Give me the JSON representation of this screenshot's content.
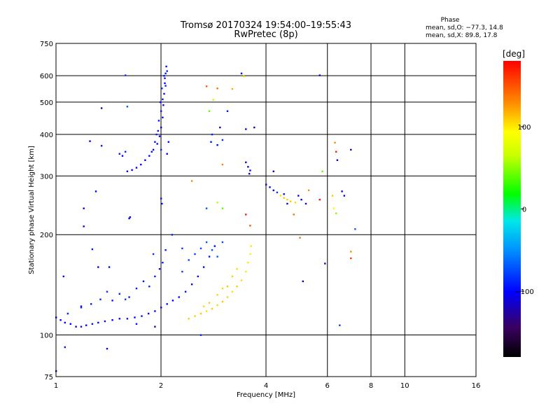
{
  "chart_data": {
    "type": "scatter",
    "title": "Tromsø 20170324 19:54:00–19:55:43",
    "subtitle": "RwPretec (8p)",
    "phase_box": {
      "label": "Phase",
      "line_o": "mean, sd,O: −77.3, 14.8",
      "line_x": "mean, sd,X:  89.8, 17.8"
    },
    "xlabel": "Frequency [MHz]",
    "ylabel": "Stationary phase Virtual Height [km]",
    "x_scale": "log",
    "y_scale": "log",
    "xlim": [
      1,
      16
    ],
    "ylim": [
      75,
      750
    ],
    "x_ticks": [
      1,
      2,
      4,
      6,
      8,
      10,
      16
    ],
    "x_tick_labels": [
      "1",
      "2",
      "4",
      "6",
      "8",
      "10",
      "16"
    ],
    "y_ticks": [
      75,
      100,
      200,
      300,
      400,
      500,
      600,
      750
    ],
    "y_tick_labels": [
      "75",
      "100",
      "200",
      "300",
      "400",
      "500",
      "600",
      "750"
    ],
    "grid": true,
    "colorbar": {
      "label": "[deg]",
      "range": [
        -180,
        180
      ],
      "ticks": [
        100,
        0,
        -100
      ],
      "tick_labels": [
        "100",
        "0",
        "−100"
      ]
    },
    "series": [
      {
        "points": [
          [
            1.0,
            113,
            -105
          ],
          [
            1.03,
            111,
            -100
          ],
          [
            1.06,
            109,
            -108
          ],
          [
            1.1,
            108,
            -102
          ],
          [
            1.14,
            106,
            -110
          ],
          [
            1.18,
            106,
            -98
          ],
          [
            1.22,
            107,
            -104
          ],
          [
            1.27,
            108,
            -95
          ],
          [
            1.32,
            109,
            -100
          ],
          [
            1.38,
            110,
            -97
          ],
          [
            1.45,
            111,
            -103
          ],
          [
            1.52,
            112,
            -99
          ],
          [
            1.6,
            112,
            -95
          ],
          [
            1.68,
            113,
            -100
          ],
          [
            1.76,
            114,
            -96
          ],
          [
            1.84,
            116,
            -102
          ],
          [
            1.92,
            118,
            -98
          ],
          [
            2.0,
            121,
            -100
          ],
          [
            2.08,
            124,
            -96
          ],
          [
            2.16,
            127,
            -103
          ],
          [
            2.25,
            130,
            -100
          ],
          [
            2.35,
            135,
            -95
          ],
          [
            2.45,
            142,
            -100
          ],
          [
            2.55,
            150,
            -97
          ],
          [
            2.65,
            160,
            -102
          ],
          [
            2.75,
            172,
            -95
          ],
          [
            2.85,
            185,
            -100
          ],
          [
            1.45,
            127,
            -92
          ],
          [
            1.52,
            133,
            -88
          ],
          [
            1.62,
            130,
            -95
          ],
          [
            1.7,
            138,
            -90
          ],
          [
            1.78,
            145,
            -94
          ],
          [
            1.85,
            140,
            -88
          ],
          [
            1.92,
            150,
            -92
          ],
          [
            1.98,
            158,
            -95
          ],
          [
            2.02,
            165,
            -90
          ],
          [
            2.06,
            180,
            -93
          ],
          [
            1.9,
            175,
            -87
          ],
          [
            1.08,
            116,
            -90
          ],
          [
            1.18,
            121,
            -85
          ],
          [
            1.26,
            124,
            -92
          ],
          [
            1.34,
            128,
            -88
          ],
          [
            1.4,
            135,
            -84
          ],
          [
            2.3,
            155,
            -80
          ],
          [
            2.4,
            168,
            -76
          ],
          [
            2.5,
            175,
            -78
          ],
          [
            2.6,
            182,
            -74
          ],
          [
            2.7,
            190,
            -72
          ],
          [
            2.8,
            180,
            -70
          ],
          [
            2.9,
            172,
            -72
          ],
          [
            3.0,
            190,
            -74
          ],
          [
            2.4,
            112,
            110
          ],
          [
            2.5,
            114,
            108
          ],
          [
            2.6,
            116,
            112
          ],
          [
            2.7,
            118,
            105
          ],
          [
            2.8,
            120,
            110
          ],
          [
            2.9,
            123,
            106
          ],
          [
            3.0,
            126,
            112
          ],
          [
            3.1,
            130,
            108
          ],
          [
            3.2,
            135,
            104
          ],
          [
            3.3,
            140,
            110
          ],
          [
            3.4,
            146,
            106
          ],
          [
            3.5,
            155,
            102
          ],
          [
            3.55,
            165,
            100
          ],
          [
            3.6,
            175,
            98
          ],
          [
            3.62,
            185,
            102
          ],
          [
            3.1,
            140,
            112
          ],
          [
            3.2,
            150,
            108
          ],
          [
            3.3,
            158,
            104
          ],
          [
            2.65,
            122,
            106
          ],
          [
            2.75,
            125,
            110
          ],
          [
            2.9,
            132,
            108
          ],
          [
            3.0,
            138,
            105
          ],
          [
            1.6,
            310,
            -110
          ],
          [
            1.65,
            313,
            -105
          ],
          [
            1.7,
            318,
            -108
          ],
          [
            1.75,
            325,
            -102
          ],
          [
            1.8,
            335,
            -106
          ],
          [
            1.85,
            345,
            -100
          ],
          [
            1.9,
            360,
            -104
          ],
          [
            1.95,
            375,
            -98
          ],
          [
            1.98,
            395,
            -102
          ],
          [
            2.0,
            420,
            -100
          ],
          [
            2.02,
            450,
            -96
          ],
          [
            2.03,
            490,
            -100
          ],
          [
            2.04,
            530,
            -96
          ],
          [
            2.05,
            570,
            -100
          ],
          [
            2.06,
            610,
            -95
          ],
          [
            2.07,
            640,
            -98
          ],
          [
            1.92,
            380,
            -92
          ],
          [
            1.96,
            410,
            -96
          ],
          [
            2.0,
            470,
            -92
          ],
          [
            2.02,
            510,
            -95
          ],
          [
            2.05,
            590,
            -92
          ],
          [
            2.08,
            620,
            -90
          ],
          [
            1.88,
            355,
            -95
          ],
          [
            1.94,
            400,
            -90
          ],
          [
            2.08,
            350,
            -100
          ],
          [
            2.1,
            380,
            -96
          ],
          [
            2.0,
            360,
            -88
          ],
          [
            1.97,
            440,
            -94
          ],
          [
            2.01,
            550,
            -88
          ],
          [
            2.04,
            600,
            -94
          ],
          [
            2.06,
            560,
            -90
          ],
          [
            1.99,
            500,
            -98
          ],
          [
            4.0,
            283,
            -110
          ],
          [
            4.1,
            278,
            -106
          ],
          [
            4.2,
            272,
            -100
          ],
          [
            4.3,
            268,
            -80
          ],
          [
            4.4,
            262,
            105
          ],
          [
            4.5,
            258,
            110
          ],
          [
            4.6,
            255,
            108
          ],
          [
            4.7,
            252,
            112
          ],
          [
            4.85,
            250,
            106
          ],
          [
            4.95,
            262,
            -100
          ],
          [
            5.05,
            255,
            -102
          ],
          [
            3.5,
            330,
            -110
          ],
          [
            3.55,
            320,
            -106
          ],
          [
            3.6,
            312,
            -100
          ],
          [
            3.58,
            305,
            -104
          ],
          [
            2.78,
            380,
            -95
          ],
          [
            2.8,
            400,
            -90
          ],
          [
            2.9,
            372,
            -100
          ],
          [
            3.0,
            385,
            -85
          ],
          [
            2.95,
            420,
            -115
          ],
          [
            3.1,
            470,
            -95
          ],
          [
            3.5,
            415,
            -100
          ],
          [
            3.7,
            420,
            -120
          ],
          [
            1.35,
            480,
            -130
          ],
          [
            1.58,
            602,
            -80
          ],
          [
            1.6,
            485,
            -70
          ],
          [
            1.25,
            382,
            -100
          ],
          [
            1.35,
            370,
            -95
          ],
          [
            1.52,
            350,
            -90
          ],
          [
            1.58,
            355,
            -85
          ],
          [
            1.55,
            345,
            -110
          ],
          [
            1.2,
            240,
            -105
          ],
          [
            1.2,
            212,
            -110
          ],
          [
            1.3,
            270,
            -100
          ],
          [
            1.32,
            160,
            -105
          ],
          [
            1.42,
            160,
            -100
          ],
          [
            1.27,
            181,
            -95
          ],
          [
            1.05,
            150,
            -100
          ],
          [
            1.18,
            122,
            -95
          ],
          [
            1.62,
            224,
            -100
          ],
          [
            1.63,
            226,
            -105
          ],
          [
            2.0,
            257,
            -95
          ],
          [
            2.01,
            248,
            -100
          ],
          [
            2.15,
            200,
            -90
          ],
          [
            1.58,
            128,
            -80
          ],
          [
            1.7,
            108,
            -95
          ],
          [
            1.92,
            106,
            -120
          ],
          [
            1.4,
            91,
            -105
          ],
          [
            1.06,
            92,
            -95
          ],
          [
            1.0,
            78,
            -110
          ],
          [
            2.3,
            182,
            -80
          ],
          [
            2.6,
            100,
            -90
          ],
          [
            2.7,
            240,
            -70
          ],
          [
            2.45,
            290,
            130
          ],
          [
            3.4,
            610,
            -100
          ],
          [
            3.45,
            598,
            110
          ],
          [
            2.9,
            550,
            140
          ],
          [
            2.7,
            558,
            150
          ],
          [
            2.82,
            508,
            60
          ],
          [
            2.75,
            470,
            40
          ],
          [
            3.2,
            548,
            120
          ],
          [
            3.0,
            325,
            130
          ],
          [
            3.5,
            230,
            170
          ],
          [
            3.6,
            213,
            150
          ],
          [
            2.9,
            250,
            60
          ],
          [
            3.0,
            240,
            40
          ],
          [
            5.7,
            602,
            -110
          ],
          [
            5.3,
            272,
            130
          ],
          [
            5.2,
            248,
            -110
          ],
          [
            5.0,
            196,
            140
          ],
          [
            4.2,
            310,
            -110
          ],
          [
            4.5,
            265,
            -100
          ],
          [
            4.6,
            248,
            -110
          ],
          [
            4.8,
            230,
            140
          ],
          [
            5.8,
            310,
            40
          ],
          [
            5.7,
            255,
            170
          ],
          [
            6.3,
            378,
            130
          ],
          [
            6.35,
            355,
            170
          ],
          [
            6.4,
            335,
            -120
          ],
          [
            6.2,
            262,
            110
          ],
          [
            6.25,
            240,
            90
          ],
          [
            6.35,
            232,
            50
          ],
          [
            6.6,
            270,
            -110
          ],
          [
            6.7,
            262,
            -100
          ],
          [
            7.0,
            360,
            -120
          ],
          [
            7.2,
            208,
            -70
          ],
          [
            7.0,
            178,
            130
          ],
          [
            7.0,
            170,
            160
          ],
          [
            5.9,
            164,
            -110
          ],
          [
            5.1,
            145,
            -120
          ],
          [
            6.5,
            107,
            -80
          ]
        ]
      }
    ]
  }
}
